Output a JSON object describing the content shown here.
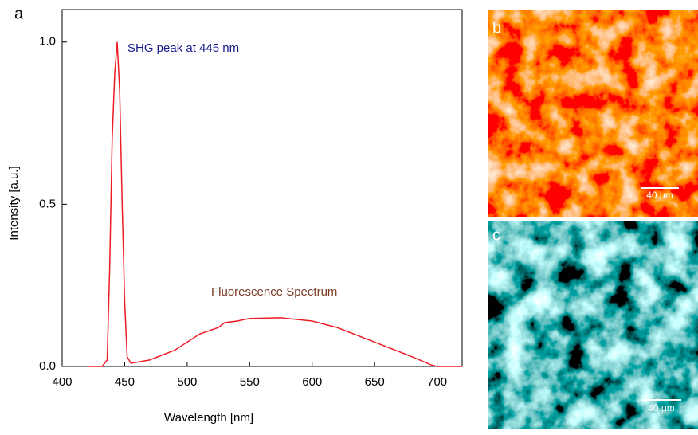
{
  "figure": {
    "panel_labels": [
      "a",
      "b",
      "c"
    ]
  },
  "chart_data": {
    "type": "line",
    "xlabel": "Wavelength [nm]",
    "ylabel": "Intensity [a.u.]",
    "x": [
      420,
      432,
      436,
      438,
      440,
      442,
      444,
      446,
      448,
      450,
      452,
      455,
      470,
      490,
      510,
      525,
      530,
      540,
      550,
      575,
      600,
      620,
      640,
      660,
      680,
      695,
      700,
      720
    ],
    "values": [
      0,
      0,
      0.02,
      0.3,
      0.7,
      0.9,
      1.0,
      0.85,
      0.5,
      0.2,
      0.03,
      0.01,
      0.02,
      0.05,
      0.1,
      0.12,
      0.135,
      0.14,
      0.148,
      0.15,
      0.14,
      0.12,
      0.09,
      0.06,
      0.03,
      0.005,
      0,
      0
    ],
    "color": "#ee1c25",
    "xlim": [
      400,
      720
    ],
    "ylim": [
      0,
      1.1
    ],
    "xticks": [
      400,
      450,
      500,
      550,
      600,
      650,
      700
    ],
    "yticks": [
      {
        "value": 0,
        "label": "0.0"
      },
      {
        "value": 0.5,
        "label": "0.5"
      },
      {
        "value": 1,
        "label": "1.0"
      }
    ],
    "annotations": [
      {
        "text": "SHG peak at 445 nm",
        "color": "#1a1a8c"
      },
      {
        "text": "Fluorescence Spectrum",
        "color": "#7a3a22"
      }
    ]
  },
  "images": [
    {
      "scale_bar": "40 μm"
    },
    {
      "scale_bar": "40 μm"
    }
  ]
}
